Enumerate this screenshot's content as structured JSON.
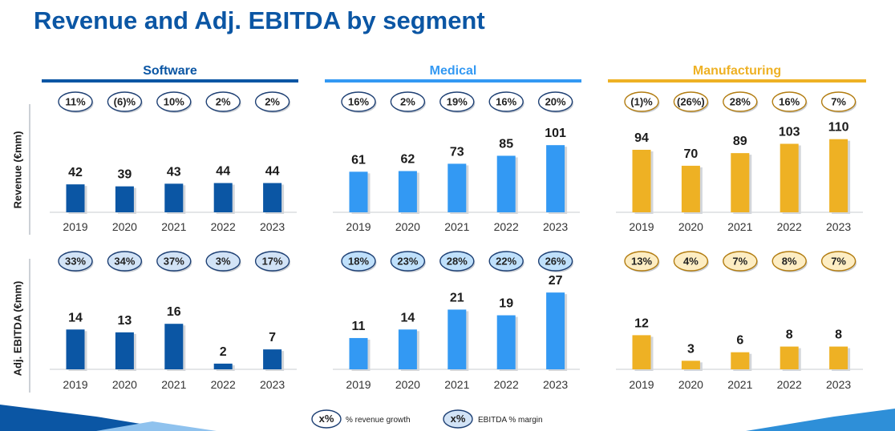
{
  "title": "Revenue and Adj. EBITDA by segment",
  "row_labels": {
    "revenue": "Revenue (€mm)",
    "ebitda": "Adj. EBITDA (€mm)"
  },
  "legend": {
    "growth_symbol": "x%",
    "growth_label": "% revenue growth",
    "margin_symbol": "x%",
    "margin_label": "EBITDA % margin"
  },
  "colors": {
    "software": "#0b56a4",
    "medical": "#3399f3",
    "manufacturing": "#eeb124",
    "software_margin_fill": "#d2e3f6",
    "medical_margin_fill": "#bfe0fb",
    "manufacturing_margin_fill": "#fdedc3",
    "title": "#0b56a4"
  },
  "chart_data": [
    {
      "type": "bar",
      "segment": "Software",
      "metric": "Revenue",
      "categories": [
        "2019",
        "2020",
        "2021",
        "2022",
        "2023"
      ],
      "values": [
        42,
        39,
        43,
        44,
        44
      ],
      "badges": [
        "11%",
        "(6)%",
        "10%",
        "2%",
        "2%"
      ],
      "badge_kind": "growth"
    },
    {
      "type": "bar",
      "segment": "Medical",
      "metric": "Revenue",
      "categories": [
        "2019",
        "2020",
        "2021",
        "2022",
        "2023"
      ],
      "values": [
        61,
        62,
        73,
        85,
        101
      ],
      "badges": [
        "16%",
        "2%",
        "19%",
        "16%",
        "20%"
      ],
      "badge_kind": "growth"
    },
    {
      "type": "bar",
      "segment": "Manufacturing",
      "metric": "Revenue",
      "categories": [
        "2019",
        "2020",
        "2021",
        "2022",
        "2023"
      ],
      "values": [
        94,
        70,
        89,
        103,
        110
      ],
      "badges": [
        "(1)%",
        "(26%)",
        "28%",
        "16%",
        "7%"
      ],
      "badge_kind": "growth"
    },
    {
      "type": "bar",
      "segment": "Software",
      "metric": "Adj. EBITDA",
      "categories": [
        "2019",
        "2020",
        "2021",
        "2022",
        "2023"
      ],
      "values": [
        14,
        13,
        16,
        2,
        7
      ],
      "badges": [
        "33%",
        "34%",
        "37%",
        "3%",
        "17%"
      ],
      "badge_kind": "margin"
    },
    {
      "type": "bar",
      "segment": "Medical",
      "metric": "Adj. EBITDA",
      "categories": [
        "2019",
        "2020",
        "2021",
        "2022",
        "2023"
      ],
      "values": [
        11,
        14,
        21,
        19,
        27
      ],
      "badges": [
        "18%",
        "23%",
        "28%",
        "22%",
        "26%"
      ],
      "badge_kind": "margin"
    },
    {
      "type": "bar",
      "segment": "Manufacturing",
      "metric": "Adj. EBITDA",
      "categories": [
        "2019",
        "2020",
        "2021",
        "2022",
        "2023"
      ],
      "values": [
        12,
        3,
        6,
        8,
        8
      ],
      "badges": [
        "13%",
        "4%",
        "7%",
        "8%",
        "7%"
      ],
      "badge_kind": "margin"
    }
  ]
}
